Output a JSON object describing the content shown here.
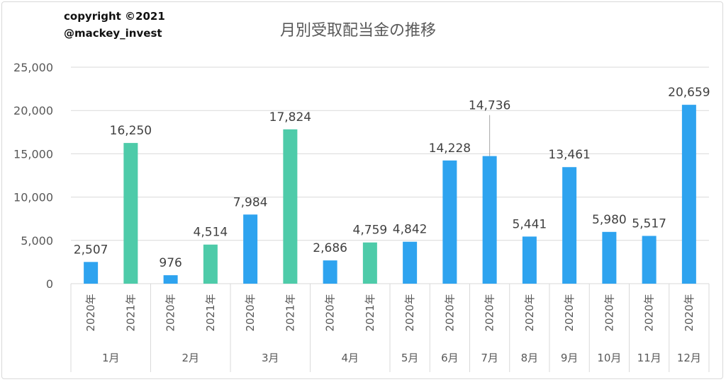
{
  "credit": {
    "line1": "copyright ©2021",
    "line2": "@mackey_invest"
  },
  "chart_data": {
    "type": "bar",
    "title": "月別受取配当金の推移",
    "xlabel": "",
    "ylabel": "",
    "ylim": [
      0,
      25000
    ],
    "yticks": [
      "0",
      "5,000",
      "10,000",
      "15,000",
      "20,000",
      "25,000"
    ],
    "grid": true,
    "legend": "none",
    "colors": {
      "2020年": "#2ea3ef",
      "2021年": "#4ecba9"
    },
    "groups": [
      {
        "month": "1月",
        "bars": [
          {
            "year": "2020年",
            "value": 2507,
            "label": "2,507"
          },
          {
            "year": "2021年",
            "value": 16250,
            "label": "16,250"
          }
        ]
      },
      {
        "month": "2月",
        "bars": [
          {
            "year": "2020年",
            "value": 976,
            "label": "976"
          },
          {
            "year": "2021年",
            "value": 4514,
            "label": "4,514"
          }
        ]
      },
      {
        "month": "3月",
        "bars": [
          {
            "year": "2020年",
            "value": 7984,
            "label": "7,984"
          },
          {
            "year": "2021年",
            "value": 17824,
            "label": "17,824"
          }
        ]
      },
      {
        "month": "4月",
        "bars": [
          {
            "year": "2020年",
            "value": 2686,
            "label": "2,686"
          },
          {
            "year": "2021年",
            "value": 4759,
            "label": "4,759"
          }
        ]
      },
      {
        "month": "5月",
        "bars": [
          {
            "year": "2020年",
            "value": 4842,
            "label": "4,842"
          }
        ]
      },
      {
        "month": "6月",
        "bars": [
          {
            "year": "2020年",
            "value": 14228,
            "label": "14,228"
          }
        ]
      },
      {
        "month": "7月",
        "bars": [
          {
            "year": "2020年",
            "value": 14736,
            "label": "14,736"
          }
        ]
      },
      {
        "month": "8月",
        "bars": [
          {
            "year": "2020年",
            "value": 5441,
            "label": "5,441"
          }
        ]
      },
      {
        "month": "9月",
        "bars": [
          {
            "year": "2020年",
            "value": 13461,
            "label": "13,461"
          }
        ]
      },
      {
        "month": "10月",
        "bars": [
          {
            "year": "2020年",
            "value": 5980,
            "label": "5,980"
          }
        ]
      },
      {
        "month": "11月",
        "bars": [
          {
            "year": "2020年",
            "value": 5517,
            "label": "5,517"
          }
        ]
      },
      {
        "month": "12月",
        "bars": [
          {
            "year": "2020年",
            "value": 20659,
            "label": "20,659"
          }
        ]
      }
    ]
  }
}
